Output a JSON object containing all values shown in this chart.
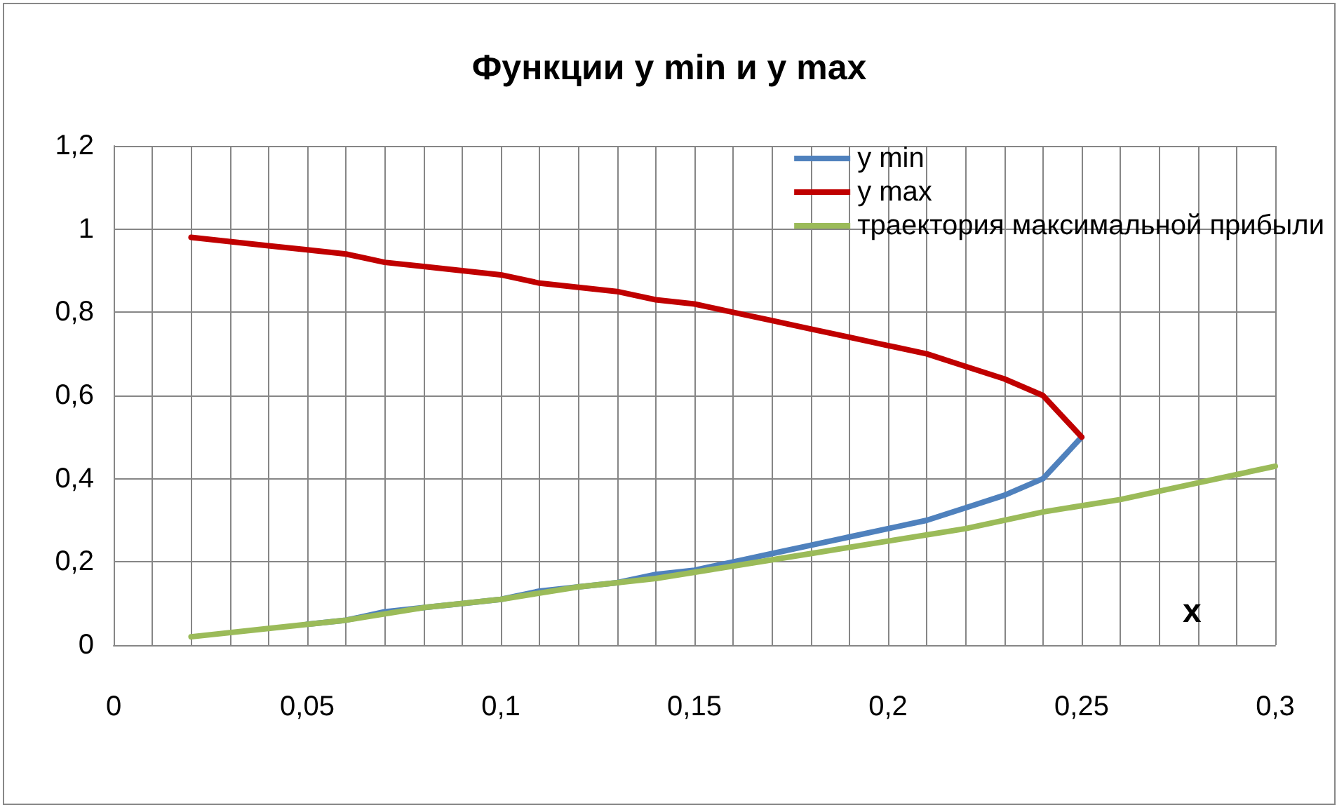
{
  "chart_data": {
    "type": "line",
    "title": "Функции y min и y max",
    "xlabel": "x",
    "xlim": [
      0,
      0.3
    ],
    "xticks": [
      0,
      {
        "value": 0.05,
        "label": "0,05"
      },
      {
        "value": 0.1,
        "label": "0,1"
      },
      {
        "value": 0.15,
        "label": "0,15"
      },
      {
        "value": 0.2,
        "label": "0,2"
      },
      {
        "value": 0.25,
        "label": "0,25"
      },
      {
        "value": 0.3,
        "label": "0,3"
      }
    ],
    "ylim": [
      0,
      1.2
    ],
    "yticks": [
      0,
      {
        "value": 0.2,
        "label": "0,2"
      },
      {
        "value": 0.4,
        "label": "0,4"
      },
      {
        "value": 0.6,
        "label": "0,6"
      },
      {
        "value": 0.8,
        "label": "0,8"
      },
      1,
      {
        "value": 1.2,
        "label": "1,2"
      }
    ],
    "grid": true,
    "legend": "top right",
    "marker": "none",
    "line_style": "solid",
    "series": [
      {
        "name": "y min",
        "color": "#4f81bd",
        "x": [
          0.05,
          0.06,
          0.07,
          0.08,
          0.09,
          0.1,
          0.11,
          0.12,
          0.13,
          0.14,
          0.15,
          0.16,
          0.17,
          0.18,
          0.19,
          0.2,
          0.21,
          0.22,
          0.23,
          0.24,
          0.25
        ],
        "values": [
          0.05,
          0.06,
          0.08,
          0.09,
          0.1,
          0.11,
          0.13,
          0.14,
          0.15,
          0.17,
          0.18,
          0.2,
          0.22,
          0.24,
          0.26,
          0.28,
          0.3,
          0.33,
          0.36,
          0.4,
          0.5
        ]
      },
      {
        "name": "y max",
        "color": "#c00000",
        "x": [
          0.02,
          0.03,
          0.04,
          0.05,
          0.06,
          0.07,
          0.08,
          0.09,
          0.1,
          0.11,
          0.12,
          0.13,
          0.14,
          0.15,
          0.16,
          0.17,
          0.18,
          0.19,
          0.2,
          0.21,
          0.22,
          0.23,
          0.24,
          0.25
        ],
        "values": [
          0.98,
          0.97,
          0.96,
          0.95,
          0.94,
          0.92,
          0.91,
          0.9,
          0.89,
          0.87,
          0.86,
          0.85,
          0.83,
          0.82,
          0.8,
          0.78,
          0.76,
          0.74,
          0.72,
          0.7,
          0.67,
          0.64,
          0.6,
          0.5
        ]
      },
      {
        "name": "траектория максимальной прибыли",
        "color": "#9bbb59",
        "x": [
          0.02,
          0.04,
          0.06,
          0.08,
          0.1,
          0.12,
          0.14,
          0.16,
          0.18,
          0.2,
          0.22,
          0.24,
          0.26,
          0.28,
          0.3
        ],
        "values": [
          0.02,
          0.04,
          0.06,
          0.09,
          0.11,
          0.14,
          0.16,
          0.19,
          0.22,
          0.25,
          0.28,
          0.32,
          0.35,
          0.39,
          0.43
        ]
      }
    ]
  }
}
